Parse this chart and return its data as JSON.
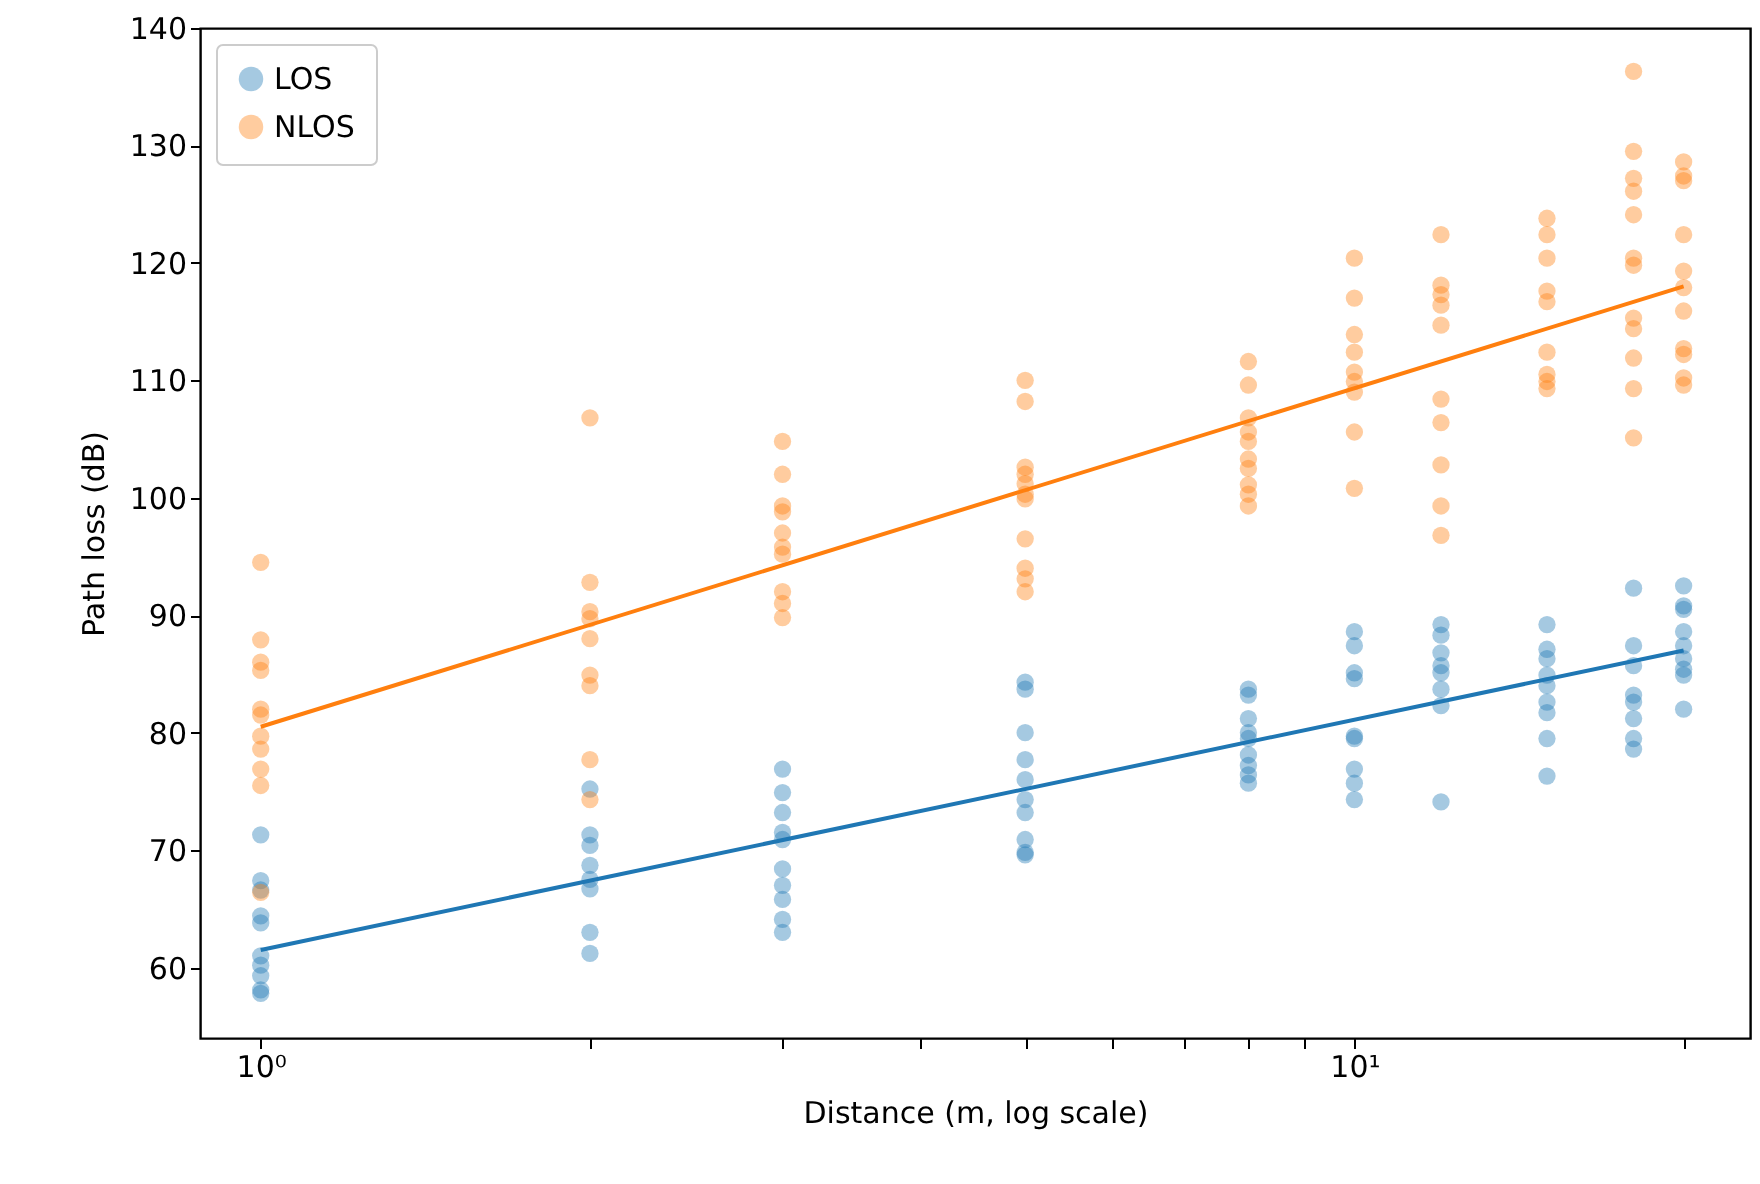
{
  "chart_data": {
    "type": "scatter",
    "xlabel": "Distance (m, log scale)",
    "ylabel": "Path loss (dB)",
    "log": "x",
    "xlim": [
      0.88,
      23
    ],
    "ylim": [
      54,
      140
    ],
    "xticks": [
      {
        "value": 1,
        "label": "10⁰"
      },
      {
        "value": 2,
        "label": null
      },
      {
        "value": 3,
        "label": null
      },
      {
        "value": 4,
        "label": null
      },
      {
        "value": 5,
        "label": null
      },
      {
        "value": 6,
        "label": null
      },
      {
        "value": 7,
        "label": null
      },
      {
        "value": 8,
        "label": null
      },
      {
        "value": 9,
        "label": null
      },
      {
        "value": 10,
        "label": "10¹"
      },
      {
        "value": 20,
        "label": null
      }
    ],
    "yticks": [
      60,
      70,
      80,
      90,
      100,
      110,
      120,
      130,
      140
    ],
    "grid": false,
    "legend": "top left",
    "series": [
      {
        "name": "LOS",
        "color": "#1f77b4",
        "marker": "circle",
        "x": [
          1,
          1,
          1,
          1,
          1,
          1,
          1,
          1,
          1,
          1,
          2,
          2,
          2,
          2,
          2,
          2,
          2,
          2,
          3,
          3,
          3,
          3,
          3,
          3,
          3,
          3,
          3,
          3,
          5,
          5,
          5,
          5,
          5,
          5,
          5,
          5,
          5,
          5,
          8,
          8,
          8,
          8,
          8,
          8,
          8,
          8,
          8,
          10,
          10,
          10,
          10,
          10,
          10,
          10,
          10,
          10,
          12,
          12,
          12,
          12,
          12,
          12,
          12,
          12,
          15,
          15,
          15,
          15,
          15,
          15,
          15,
          15,
          15,
          18,
          18,
          18,
          18,
          18,
          18,
          18,
          18,
          20,
          20,
          20,
          20,
          20,
          20,
          20,
          20,
          20
        ],
        "values": [
          71.3,
          67.4,
          66.6,
          64.4,
          63.8,
          61,
          60.2,
          59.3,
          58.1,
          57.8,
          75.2,
          71.3,
          70.4,
          68.7,
          67.5,
          66.7,
          63,
          61.2,
          76.9,
          74.9,
          73.2,
          71.5,
          70.9,
          68.4,
          67,
          65.8,
          64.1,
          63,
          84.3,
          83.7,
          80,
          77.7,
          76,
          74.3,
          73.2,
          70.9,
          69.8,
          69.6,
          83.7,
          83.2,
          81.2,
          80,
          79.5,
          78.1,
          77.2,
          76.4,
          75.7,
          88.6,
          87.4,
          85.1,
          84.6,
          79.7,
          79.5,
          76.9,
          75.7,
          74.3,
          89.2,
          88.3,
          86.8,
          85.7,
          85.1,
          83.7,
          82.3,
          74.1,
          89.2,
          87.1,
          86.3,
          84.9,
          84,
          82.6,
          81.7,
          79.5,
          76.3,
          92.3,
          87.4,
          85.7,
          83.2,
          82.6,
          81.2,
          79.5,
          78.6,
          92.5,
          90.8,
          90.5,
          88.6,
          87.4,
          86.3,
          85.4,
          84.9,
          82
        ]
      },
      {
        "name": "NLOS",
        "color": "#ff7f0e",
        "marker": "circle",
        "x": [
          1,
          1,
          1,
          1,
          1,
          1,
          1,
          1,
          1,
          1,
          1,
          2,
          2,
          2,
          2,
          2,
          2,
          2,
          2,
          2,
          3,
          3,
          3,
          3,
          3,
          3,
          3,
          3,
          3,
          3,
          5,
          5,
          5,
          5,
          5,
          5,
          5,
          5,
          5,
          5,
          5,
          8,
          8,
          8,
          8,
          8,
          8,
          8,
          8,
          8,
          8,
          10,
          10,
          10,
          10,
          10,
          10,
          10,
          10,
          10,
          12,
          12,
          12,
          12,
          12,
          12,
          12,
          12,
          12,
          12,
          15,
          15,
          15,
          15,
          15,
          15,
          15,
          15,
          15,
          18,
          18,
          18,
          18,
          18,
          18,
          18,
          18,
          18,
          18,
          18,
          18,
          20,
          20,
          20,
          20,
          20,
          20,
          20,
          20,
          20,
          20,
          20
        ],
        "values": [
          94.5,
          87.9,
          86,
          85.3,
          82,
          81.5,
          79.7,
          78.6,
          76.9,
          75.5,
          66.4,
          106.8,
          92.8,
          90.3,
          89.7,
          88,
          84.9,
          84,
          77.7,
          74.3,
          104.8,
          102,
          99.3,
          98.8,
          97,
          95.8,
          95.2,
          92,
          91,
          89.8,
          110,
          108.2,
          102.6,
          102,
          101.2,
          100.3,
          99.9,
          96.5,
          94,
          93.1,
          92,
          111.6,
          109.6,
          106.8,
          105.6,
          104.8,
          103.3,
          102.5,
          101.1,
          100.3,
          99.3,
          120.4,
          117,
          113.9,
          112.4,
          110.7,
          109.9,
          109,
          105.6,
          100.8,
          122.4,
          118.1,
          117.3,
          116.4,
          114.7,
          108.4,
          106.4,
          102.8,
          99.3,
          96.8,
          123.8,
          122.4,
          120.4,
          117.6,
          116.7,
          112.4,
          110.5,
          109.9,
          109.3,
          136.3,
          129.5,
          127.2,
          126.1,
          124.1,
          120.4,
          119.8,
          115.3,
          114.4,
          111.9,
          109.3,
          105.1,
          128.6,
          127.4,
          127,
          122.4,
          119.3,
          117.9,
          115.9,
          112.7,
          112.2,
          110.2,
          109.6
        ]
      },
      {
        "type": "line",
        "marker": "none",
        "color": "#1f77b4",
        "x": [
          1,
          20
        ],
        "values": [
          61.5,
          87
        ]
      },
      {
        "type": "line",
        "marker": "none",
        "color": "#ff7f0e",
        "x": [
          1,
          20
        ],
        "values": [
          80.5,
          118
        ]
      }
    ]
  }
}
